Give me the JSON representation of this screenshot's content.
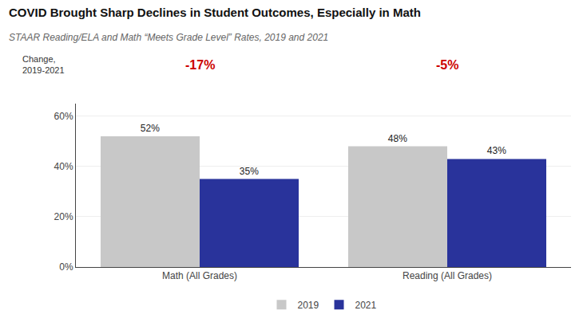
{
  "chart_data": {
    "type": "bar",
    "title": "COVID Brought Sharp Declines in Student Outcomes, Especially in Math",
    "subtitle": "STAAR Reading/ELA and Math “Meets Grade Level” Rates, 2019 and 2021",
    "categories": [
      "Math (All Grades)",
      "Reading (All Grades)"
    ],
    "series": [
      {
        "name": "2019",
        "color": "#c8c8c8",
        "values": [
          52,
          48
        ],
        "value_labels": [
          "52%",
          "48%"
        ]
      },
      {
        "name": "2021",
        "color": "#29339b",
        "values": [
          35,
          43
        ],
        "value_labels": [
          "35%",
          "43%"
        ]
      }
    ],
    "changes": {
      "name": "Change,\n2019-2021",
      "color": "#cc0000",
      "values": [
        -17,
        -5
      ],
      "value_labels": [
        "-17%",
        "-5%"
      ]
    },
    "ylim": [
      0,
      65
    ],
    "yticks": [
      {
        "value": 0,
        "label": "0%"
      },
      {
        "value": 20,
        "label": "20%"
      },
      {
        "value": 40,
        "label": "40%"
      },
      {
        "value": 60,
        "label": "60%"
      }
    ],
    "grid": true,
    "legend": "bottom",
    "data_labels": true
  }
}
